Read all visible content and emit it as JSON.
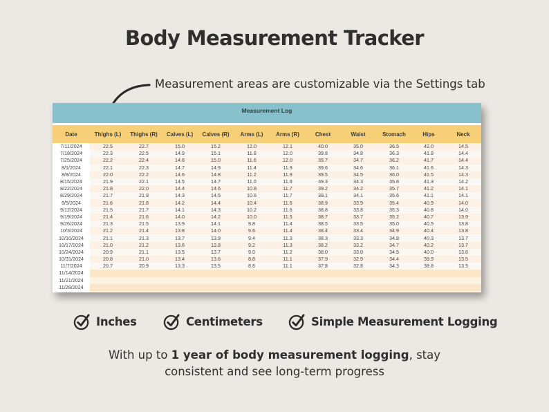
{
  "title": "Body Measurement Tracker",
  "annotation": "Measurement areas are customizable via the Settings tab",
  "sheet": {
    "title": "Measurement Log",
    "columns": [
      "Date",
      "Thighs (L)",
      "Thighs (R)",
      "Calves (L)",
      "Calves (R)",
      "Arms (L)",
      "Arms (R)",
      "Chest",
      "Waist",
      "Stomach",
      "Hips",
      "Neck"
    ],
    "rows": [
      [
        "7/11/2024",
        "22.5",
        "22.7",
        "15.0",
        "15.2",
        "12.0",
        "12.1",
        "40.0",
        "35.0",
        "36.5",
        "42.0",
        "14.5"
      ],
      [
        "7/18/2024",
        "22.3",
        "22.5",
        "14.9",
        "15.1",
        "11.8",
        "12.0",
        "39.8",
        "34.8",
        "36.3",
        "41.8",
        "14.4"
      ],
      [
        "7/25/2024",
        "22.2",
        "22.4",
        "14.8",
        "15.0",
        "11.6",
        "12.0",
        "39.7",
        "34.7",
        "36.2",
        "41.7",
        "14.4"
      ],
      [
        "8/1/2024",
        "22.1",
        "22.3",
        "14.7",
        "14.9",
        "11.4",
        "11.9",
        "39.6",
        "34.6",
        "36.1",
        "41.6",
        "14.3"
      ],
      [
        "8/8/2024",
        "22.0",
        "22.2",
        "14.6",
        "14.8",
        "11.2",
        "11.9",
        "39.5",
        "34.5",
        "36.0",
        "41.5",
        "14.3"
      ],
      [
        "8/15/2024",
        "21.9",
        "22.1",
        "14.5",
        "14.7",
        "11.0",
        "11.8",
        "39.3",
        "34.3",
        "35.8",
        "41.3",
        "14.2"
      ],
      [
        "8/22/2024",
        "21.8",
        "22.0",
        "14.4",
        "14.6",
        "10.8",
        "11.7",
        "39.2",
        "34.2",
        "35.7",
        "41.2",
        "14.1"
      ],
      [
        "8/29/2024",
        "21.7",
        "21.9",
        "14.3",
        "14.5",
        "10.6",
        "11.7",
        "39.1",
        "34.1",
        "35.6",
        "41.1",
        "14.1"
      ],
      [
        "9/5/2024",
        "21.6",
        "21.8",
        "14.2",
        "14.4",
        "10.4",
        "11.6",
        "38.9",
        "33.9",
        "35.4",
        "40.9",
        "14.0"
      ],
      [
        "9/12/2024",
        "21.5",
        "21.7",
        "14.1",
        "14.3",
        "10.2",
        "11.6",
        "38.8",
        "33.8",
        "35.3",
        "40.8",
        "14.0"
      ],
      [
        "9/19/2024",
        "21.4",
        "21.6",
        "14.0",
        "14.2",
        "10.0",
        "11.5",
        "38.7",
        "33.7",
        "35.2",
        "40.7",
        "13.9"
      ],
      [
        "9/26/2024",
        "21.3",
        "21.5",
        "13.9",
        "14.1",
        "9.8",
        "11.4",
        "38.5",
        "33.5",
        "35.0",
        "40.5",
        "13.8"
      ],
      [
        "10/3/2024",
        "21.2",
        "21.4",
        "13.8",
        "14.0",
        "9.6",
        "11.4",
        "38.4",
        "33.4",
        "34.9",
        "40.4",
        "13.8"
      ],
      [
        "10/10/2024",
        "21.1",
        "21.3",
        "13.7",
        "13.9",
        "9.4",
        "11.3",
        "38.3",
        "33.3",
        "34.8",
        "40.3",
        "13.7"
      ],
      [
        "10/17/2024",
        "21.0",
        "21.2",
        "13.6",
        "13.8",
        "9.2",
        "11.3",
        "38.2",
        "33.2",
        "34.7",
        "40.2",
        "13.7"
      ],
      [
        "10/24/2024",
        "20.9",
        "21.1",
        "13.5",
        "13.7",
        "9.0",
        "11.2",
        "38.0",
        "33.0",
        "34.5",
        "40.0",
        "13.6"
      ],
      [
        "10/31/2024",
        "20.8",
        "21.0",
        "13.4",
        "13.6",
        "8.8",
        "11.1",
        "37.9",
        "32.9",
        "34.4",
        "39.9",
        "13.5"
      ],
      [
        "11/7/2024",
        "20.7",
        "20.9",
        "13.3",
        "13.5",
        "8.6",
        "11.1",
        "37.8",
        "32.8",
        "34.3",
        "39.8",
        "13.5"
      ],
      [
        "11/14/2024",
        "",
        "",
        "",
        "",
        "",
        "",
        "",
        "",
        "",
        "",
        ""
      ],
      [
        "11/21/2024",
        "",
        "",
        "",
        "",
        "",
        "",
        "",
        "",
        "",
        "",
        ""
      ],
      [
        "11/28/2024",
        "",
        "",
        "",
        "",
        "",
        "",
        "",
        "",
        "",
        "",
        ""
      ],
      [
        "12/5/2024",
        "",
        "",
        "",
        "",
        "",
        "",
        "",
        "",
        "",
        "",
        ""
      ]
    ]
  },
  "features": [
    {
      "label": "Inches",
      "icon": "check-circle-icon"
    },
    {
      "label": "Centimeters",
      "icon": "check-circle-icon"
    },
    {
      "label": "Simple Measurement Logging",
      "icon": "check-circle-icon"
    }
  ],
  "footer": {
    "prefix": "With up to ",
    "bold": "1 year of body measurement logging",
    "suffix": ", stay",
    "line2": "consistent and see long-term progress"
  },
  "colors": {
    "background": "#ece8e3",
    "sheet_title_bar": "#86c1cc",
    "header_row": "#f7cf77",
    "row_tint": "#fdf1e6"
  }
}
